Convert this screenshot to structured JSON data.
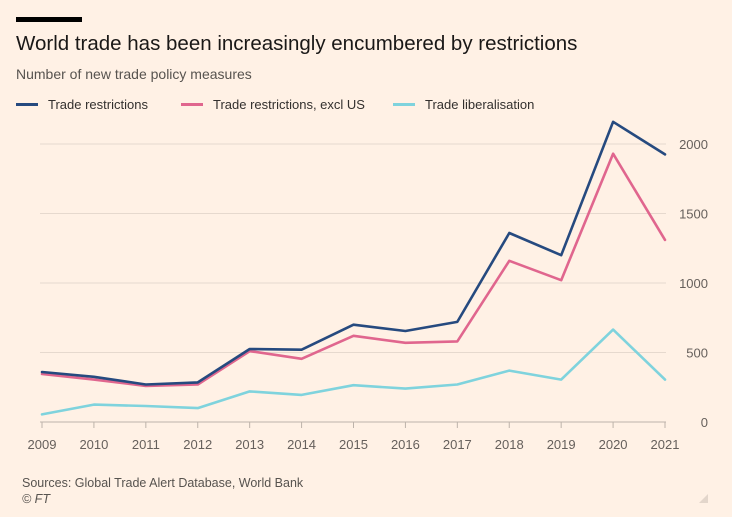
{
  "title": "World trade has been increasingly encumbered by restrictions",
  "subtitle": "Number of new trade policy measures",
  "footer": {
    "source": "Sources: Global Trade Alert Database, World Bank",
    "credit": "© FT"
  },
  "colors": {
    "background": "#FFF1E5",
    "grid": "#E6D9CE",
    "axis_text": "#66605C"
  },
  "chart_data": {
    "type": "line",
    "x": [
      "2009",
      "2010",
      "2011",
      "2012",
      "2013",
      "2014",
      "2015",
      "2016",
      "2017",
      "2018",
      "2019",
      "2020",
      "2021"
    ],
    "series": [
      {
        "name": "Trade restrictions",
        "color": "#264A7F",
        "values": [
          360,
          325,
          270,
          285,
          525,
          520,
          700,
          655,
          720,
          1360,
          1200,
          2160,
          1925
        ]
      },
      {
        "name": "Trade restrictions, excl US",
        "color": "#E0668E",
        "values": [
          345,
          305,
          260,
          270,
          510,
          455,
          620,
          570,
          580,
          1160,
          1020,
          1930,
          1310
        ]
      },
      {
        "name": "Trade liberalisation",
        "color": "#7FD3DD",
        "values": [
          55,
          125,
          115,
          100,
          220,
          195,
          265,
          240,
          270,
          370,
          305,
          665,
          305
        ]
      }
    ],
    "yticks": [
      0,
      500,
      1000,
      1500,
      2000
    ],
    "ylim": [
      0,
      2200
    ],
    "grid": true,
    "legend": "top-left",
    "y_axis_position": "right"
  }
}
